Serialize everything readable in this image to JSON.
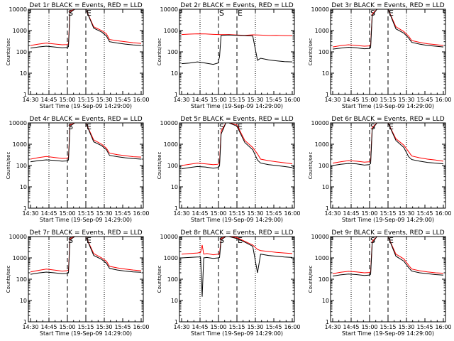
{
  "chart_data": [
    {
      "type": "line",
      "title": "Det 1r BLACK = Events, RED = LLD",
      "xlabel": "Start Time (19-Sep-09 14:29:00)",
      "ylabel": "Counts/sec",
      "x_tick_labels": [
        "14:30",
        "14:45",
        "15:00",
        "15:15",
        "15:30",
        "15:45",
        "16:00"
      ],
      "y_tick_labels": [
        "1",
        "10",
        "100",
        "1000",
        "10000"
      ],
      "y_scale": "log",
      "ylim": [
        1,
        10000
      ],
      "markers": [
        {
          "label": "S"
        },
        {
          "label": "E"
        }
      ],
      "series": [
        {
          "name": "LLD",
          "color": "#ff0000",
          "x": [
            0,
            5,
            10,
            15,
            20,
            23,
            24,
            25,
            28,
            30,
            35,
            40,
            45,
            48,
            50,
            55,
            60,
            65,
            70
          ],
          "values": [
            200,
            230,
            260,
            235,
            215,
            220,
            240,
            8000,
            10000,
            10000,
            10000,
            1500,
            1000,
            700,
            380,
            330,
            300,
            270,
            250
          ]
        },
        {
          "name": "Events",
          "color": "#000000",
          "x": [
            0,
            5,
            10,
            15,
            20,
            23,
            24,
            25,
            28,
            30,
            35,
            40,
            45,
            48,
            50,
            55,
            60,
            65,
            70
          ],
          "values": [
            150,
            170,
            185,
            170,
            155,
            160,
            175,
            7000,
            10000,
            10000,
            10000,
            1300,
            850,
            560,
            300,
            260,
            230,
            210,
            200
          ]
        }
      ]
    },
    {
      "type": "line",
      "title": "Det 2r BLACK = Events, RED = LLD",
      "xlabel": "Start Time (19-Sep-09 14:29:00)",
      "ylabel": "Counts/sec",
      "x_tick_labels": [
        "14:30",
        "14:45",
        "15:00",
        "15:15",
        "15:30",
        "15:45",
        "16:00"
      ],
      "y_tick_labels": [
        "1",
        "10",
        "100",
        "1000",
        "10000"
      ],
      "y_scale": "log",
      "ylim": [
        1,
        10000
      ],
      "markers": [
        {
          "label": "S"
        },
        {
          "label": "E"
        }
      ],
      "series": [
        {
          "name": "LLD",
          "color": "#ff0000",
          "x": [
            0,
            5,
            10,
            15,
            20,
            25,
            30,
            35,
            40,
            45,
            50,
            55,
            60,
            65,
            70
          ],
          "values": [
            650,
            680,
            700,
            690,
            660,
            640,
            650,
            620,
            600,
            630,
            610,
            590,
            600,
            580,
            570
          ]
        },
        {
          "name": "Events",
          "color": "#000000",
          "x": [
            0,
            5,
            10,
            15,
            20,
            23,
            24,
            25,
            30,
            35,
            40,
            45,
            48,
            50,
            55,
            60,
            65,
            70
          ],
          "values": [
            28,
            30,
            34,
            30,
            26,
            30,
            60,
            600,
            620,
            600,
            580,
            560,
            40,
            50,
            42,
            38,
            35,
            34
          ]
        }
      ]
    },
    {
      "type": "line",
      "title": "Det 3r BLACK = Events, RED = LLD",
      "xlabel": "Start Time (19-Sep-09 14:29:00)",
      "ylabel": "Counts/sec",
      "x_tick_labels": [
        "14:30",
        "14:45",
        "15:00",
        "15:15",
        "15:30",
        "15:45",
        "16:00"
      ],
      "y_tick_labels": [
        "1",
        "10",
        "100",
        "1000",
        "10000"
      ],
      "y_scale": "log",
      "ylim": [
        1,
        10000
      ],
      "markers": [
        {
          "label": "S"
        },
        {
          "label": "E"
        }
      ],
      "series": [
        {
          "name": "LLD",
          "color": "#ff0000",
          "x": [
            0,
            5,
            10,
            15,
            20,
            23,
            24,
            25,
            28,
            30,
            35,
            40,
            45,
            48,
            50,
            55,
            60,
            65,
            70
          ],
          "values": [
            170,
            195,
            215,
            200,
            185,
            190,
            210,
            6000,
            10000,
            10000,
            10000,
            1500,
            900,
            550,
            340,
            280,
            240,
            220,
            200
          ]
        },
        {
          "name": "Events",
          "color": "#000000",
          "x": [
            0,
            5,
            10,
            15,
            20,
            23,
            24,
            25,
            28,
            30,
            35,
            40,
            45,
            48,
            50,
            55,
            60,
            65,
            70
          ],
          "values": [
            135,
            150,
            165,
            155,
            140,
            145,
            160,
            5000,
            10000,
            10000,
            10000,
            1200,
            750,
            450,
            280,
            230,
            200,
            185,
            170
          ]
        }
      ]
    },
    {
      "type": "line",
      "title": "Det 4r BLACK = Events, RED = LLD",
      "xlabel": "Start Time (19-Sep-09 14:29:00)",
      "ylabel": "Counts/sec",
      "x_tick_labels": [
        "14:30",
        "14:45",
        "15:00",
        "15:15",
        "15:30",
        "15:45",
        "16:00"
      ],
      "y_tick_labels": [
        "1",
        "10",
        "100",
        "1000",
        "10000"
      ],
      "y_scale": "log",
      "ylim": [
        1,
        10000
      ],
      "markers": [
        {
          "label": "S"
        },
        {
          "label": "E"
        }
      ],
      "series": [
        {
          "name": "LLD",
          "color": "#ff0000",
          "x": [
            0,
            5,
            10,
            15,
            20,
            23,
            24,
            25,
            28,
            30,
            35,
            40,
            45,
            48,
            50,
            55,
            60,
            65,
            70
          ],
          "values": [
            200,
            235,
            265,
            240,
            215,
            220,
            240,
            8000,
            10000,
            10000,
            10000,
            1600,
            1000,
            650,
            380,
            320,
            290,
            260,
            250
          ]
        },
        {
          "name": "Events",
          "color": "#000000",
          "x": [
            0,
            5,
            10,
            15,
            20,
            23,
            24,
            25,
            28,
            30,
            35,
            40,
            45,
            48,
            50,
            55,
            60,
            65,
            70
          ],
          "values": [
            150,
            170,
            185,
            175,
            160,
            165,
            180,
            7000,
            10000,
            10000,
            10000,
            1300,
            850,
            550,
            300,
            260,
            230,
            210,
            200
          ]
        }
      ]
    },
    {
      "type": "line",
      "title": "Det 5r BLACK = Events, RED = LLD",
      "xlabel": "Start Time (19-Sep-09 14:29:00)",
      "ylabel": "Counts/sec",
      "x_tick_labels": [
        "14:30",
        "14:45",
        "15:00",
        "15:15",
        "15:30",
        "15:45",
        "16:00"
      ],
      "y_tick_labels": [
        "1",
        "10",
        "100",
        "1000",
        "10000"
      ],
      "y_scale": "log",
      "ylim": [
        1,
        10000
      ],
      "markers": [
        {
          "label": "S"
        },
        {
          "label": "E"
        }
      ],
      "series": [
        {
          "name": "LLD",
          "color": "#ff0000",
          "x": [
            0,
            5,
            10,
            15,
            20,
            23,
            24,
            25,
            28,
            30,
            35,
            40,
            45,
            48,
            50,
            55,
            60,
            65,
            70
          ],
          "values": [
            100,
            115,
            130,
            120,
            110,
            115,
            140,
            4000,
            10000,
            10000,
            8000,
            1500,
            700,
            350,
            200,
            170,
            150,
            135,
            120
          ]
        },
        {
          "name": "Events",
          "color": "#000000",
          "x": [
            0,
            5,
            10,
            15,
            20,
            23,
            24,
            25,
            28,
            30,
            35,
            40,
            45,
            48,
            50,
            55,
            60,
            65,
            70
          ],
          "values": [
            70,
            80,
            90,
            85,
            75,
            80,
            95,
            3000,
            10000,
            10000,
            7000,
            1200,
            550,
            180,
            130,
            110,
            100,
            90,
            80
          ]
        }
      ]
    },
    {
      "type": "line",
      "title": "Det 6r BLACK = Events, RED = LLD",
      "xlabel": "Start Time (19-Sep-09 14:29:00)",
      "ylabel": "Counts/sec",
      "x_tick_labels": [
        "14:30",
        "14:45",
        "15:00",
        "15:15",
        "15:30",
        "15:45",
        "16:00"
      ],
      "y_tick_labels": [
        "1",
        "10",
        "100",
        "1000",
        "10000"
      ],
      "y_scale": "log",
      "ylim": [
        1,
        10000
      ],
      "markers": [
        {
          "label": "S"
        },
        {
          "label": "E"
        }
      ],
      "series": [
        {
          "name": "LLD",
          "color": "#ff0000",
          "x": [
            0,
            5,
            10,
            15,
            20,
            23,
            24,
            25,
            28,
            30,
            35,
            40,
            45,
            48,
            50,
            55,
            60,
            65,
            70
          ],
          "values": [
            130,
            150,
            170,
            160,
            145,
            150,
            170,
            6000,
            10000,
            10000,
            10000,
            1800,
            900,
            450,
            280,
            230,
            200,
            180,
            160
          ]
        },
        {
          "name": "Events",
          "color": "#000000",
          "x": [
            0,
            5,
            10,
            15,
            20,
            23,
            24,
            25,
            28,
            30,
            35,
            40,
            45,
            48,
            50,
            55,
            60,
            65,
            70
          ],
          "values": [
            100,
            115,
            125,
            120,
            105,
            110,
            125,
            5000,
            10000,
            10000,
            10000,
            1500,
            700,
            260,
            190,
            160,
            140,
            130,
            120
          ]
        }
      ]
    },
    {
      "type": "line",
      "title": "Det 7r BLACK = Events, RED = LLD",
      "xlabel": "Start Time (19-Sep-09 14:29:00)",
      "ylabel": "Counts/sec",
      "x_tick_labels": [
        "14:30",
        "14:45",
        "15:00",
        "15:15",
        "15:30",
        "15:45",
        "16:00"
      ],
      "y_tick_labels": [
        "1",
        "10",
        "100",
        "1000",
        "10000"
      ],
      "y_scale": "log",
      "ylim": [
        1,
        10000
      ],
      "markers": [
        {
          "label": "S"
        },
        {
          "label": "E"
        }
      ],
      "series": [
        {
          "name": "LLD",
          "color": "#ff0000",
          "x": [
            0,
            5,
            10,
            15,
            20,
            23,
            24,
            25,
            28,
            30,
            35,
            40,
            45,
            48,
            50,
            55,
            60,
            65,
            70
          ],
          "values": [
            220,
            260,
            300,
            270,
            240,
            250,
            270,
            8000,
            10000,
            10000,
            10000,
            1600,
            1000,
            700,
            400,
            340,
            300,
            270,
            250
          ]
        },
        {
          "name": "Events",
          "color": "#000000",
          "x": [
            0,
            5,
            10,
            15,
            20,
            23,
            24,
            25,
            28,
            30,
            35,
            40,
            45,
            48,
            50,
            55,
            60,
            65,
            70
          ],
          "values": [
            170,
            195,
            215,
            200,
            180,
            185,
            200,
            7000,
            10000,
            10000,
            10000,
            1300,
            850,
            560,
            320,
            270,
            240,
            220,
            210
          ]
        }
      ]
    },
    {
      "type": "line",
      "title": "Det 8r BLACK = Events, RED = LLD",
      "xlabel": "Start Time (19-Sep-09 14:29:00)",
      "ylabel": "Counts/sec",
      "x_tick_labels": [
        "14:30",
        "14:45",
        "15:00",
        "15:15",
        "15:30",
        "15:45",
        "16:00"
      ],
      "y_tick_labels": [
        "1",
        "10",
        "100",
        "1000",
        "10000"
      ],
      "y_scale": "log",
      "ylim": [
        1,
        10000
      ],
      "markers": [
        {
          "label": "S"
        },
        {
          "label": "E"
        }
      ],
      "series": [
        {
          "name": "LLD",
          "color": "#ff0000",
          "x": [
            0,
            5,
            10,
            12,
            13,
            14,
            16,
            20,
            23,
            24,
            25,
            28,
            30,
            35,
            40,
            45,
            48,
            50,
            55,
            60,
            65,
            70
          ],
          "values": [
            1500,
            1600,
            1700,
            1800,
            4000,
            1500,
            1600,
            1400,
            1500,
            1600,
            8000,
            10000,
            10000,
            9000,
            6000,
            4000,
            2500,
            2200,
            2000,
            1800,
            1700,
            1600
          ]
        },
        {
          "name": "Events",
          "color": "#000000",
          "x": [
            0,
            5,
            10,
            12,
            13,
            14,
            16,
            20,
            23,
            24,
            25,
            28,
            30,
            35,
            40,
            45,
            48,
            50,
            55,
            60,
            65,
            70
          ],
          "values": [
            1000,
            1050,
            1100,
            1100,
            15,
            1000,
            1050,
            950,
            1000,
            1050,
            7000,
            10000,
            10000,
            8000,
            5500,
            3500,
            200,
            1500,
            1300,
            1200,
            1100,
            1050
          ]
        }
      ]
    },
    {
      "type": "line",
      "title": "Det 9r BLACK = Events, RED = LLD",
      "xlabel": "Start Time (19-Sep-09 14:29:00)",
      "ylabel": "Counts/sec",
      "x_tick_labels": [
        "14:30",
        "14:45",
        "15:00",
        "15:15",
        "15:30",
        "15:45",
        "16:00"
      ],
      "y_tick_labels": [
        "1",
        "10",
        "100",
        "1000",
        "10000"
      ],
      "y_scale": "log",
      "ylim": [
        1,
        10000
      ],
      "markers": [
        {
          "label": "S"
        },
        {
          "label": "E"
        }
      ],
      "series": [
        {
          "name": "LLD",
          "color": "#ff0000",
          "x": [
            0,
            5,
            10,
            15,
            20,
            23,
            24,
            25,
            28,
            30,
            35,
            40,
            45,
            48,
            50,
            55,
            60,
            65,
            70
          ],
          "values": [
            180,
            210,
            235,
            220,
            200,
            205,
            220,
            6000,
            10000,
            10000,
            10000,
            1500,
            900,
            450,
            300,
            250,
            220,
            200,
            190
          ]
        },
        {
          "name": "Events",
          "color": "#000000",
          "x": [
            0,
            5,
            10,
            15,
            20,
            23,
            24,
            25,
            28,
            30,
            35,
            40,
            45,
            48,
            50,
            55,
            60,
            65,
            70
          ],
          "values": [
            140,
            160,
            175,
            165,
            150,
            155,
            170,
            5000,
            10000,
            10000,
            10000,
            1200,
            700,
            350,
            240,
            200,
            180,
            165,
            155
          ]
        }
      ]
    }
  ]
}
